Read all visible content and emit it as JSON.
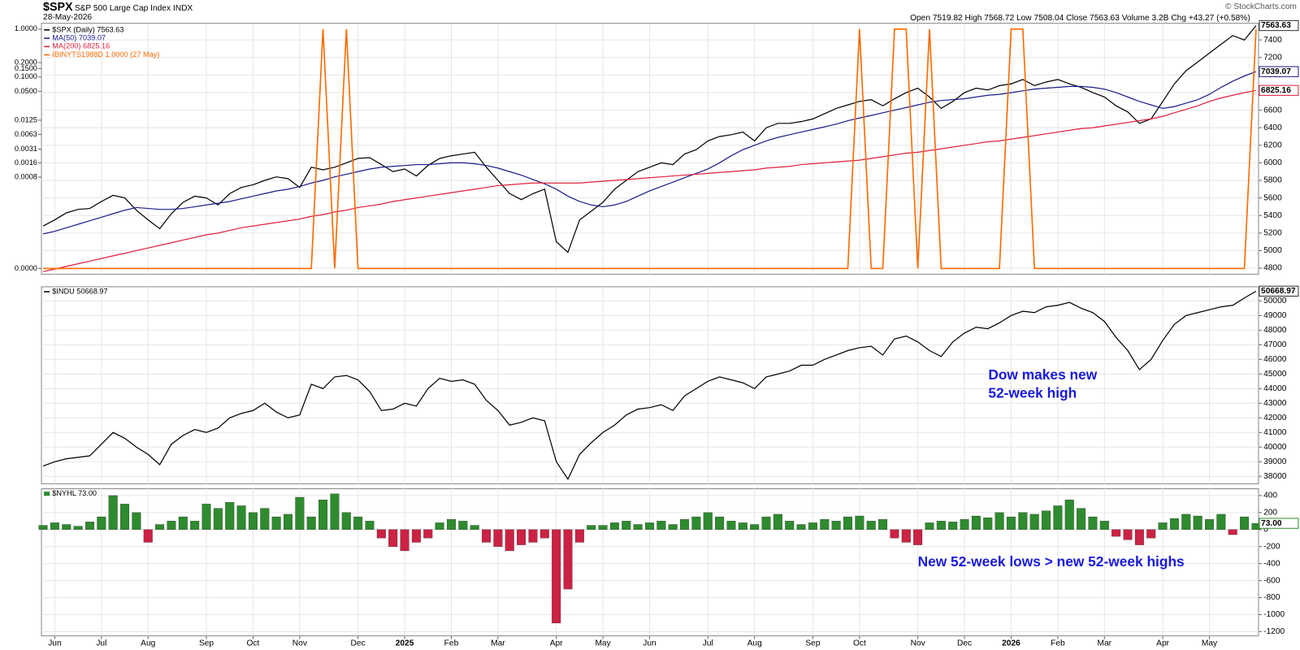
{
  "header": {
    "symbol": "$SPX",
    "name": "S&P 500 Large Cap Index INDX",
    "date": "28-May-2026",
    "quote": "Open 7519.82 High 7568.72 Low 7508.04 Close 7563.63 Volume 3.2B Chg +43.27 (+0.58%)",
    "credit": "© StockCharts.com"
  },
  "chart_data": [
    {
      "type": "line",
      "xlim": [
        0,
        104
      ],
      "ylim": [
        4730,
        7590
      ],
      "yticks": [
        4800,
        5000,
        5200,
        5400,
        5600,
        5800,
        6000,
        6200,
        6400,
        6600,
        6800,
        7000,
        7200,
        7400
      ],
      "y3lim": [
        0,
        1
      ],
      "y3scale": "log",
      "y3ticks": [
        {
          "value": 0,
          "label": "0.0000"
        },
        {
          "value": 0.0008,
          "label": "0.0008"
        },
        {
          "value": 0.0016,
          "label": "0.0016"
        },
        {
          "value": 0.0031,
          "label": "0.0031"
        },
        {
          "value": 0.0063,
          "label": "0.0063"
        },
        {
          "value": 0.0125,
          "label": "0.0125"
        },
        {
          "value": 0.05,
          "label": "0.0500"
        },
        {
          "value": 0.1,
          "label": "0.1000"
        },
        {
          "value": 0.15,
          "label": "0.1500"
        },
        {
          "value": 0.2,
          "label": "0.2000"
        },
        {
          "value": 1,
          "label": "1.0000"
        }
      ],
      "grid": true,
      "series": [
        {
          "name": "$SPX (Daily) 7563.63",
          "color": "#000000",
          "values": [
            5280,
            5350,
            5430,
            5470,
            5480,
            5560,
            5630,
            5600,
            5460,
            5350,
            5250,
            5420,
            5550,
            5620,
            5600,
            5520,
            5650,
            5720,
            5750,
            5800,
            5840,
            5820,
            5720,
            5950,
            5920,
            5950,
            6000,
            6050,
            6060,
            5980,
            5900,
            5930,
            5850,
            5970,
            6050,
            6080,
            6100,
            6120,
            5950,
            5800,
            5650,
            5580,
            5650,
            5700,
            5100,
            4980,
            5350,
            5450,
            5550,
            5700,
            5800,
            5900,
            5950,
            6000,
            5980,
            6100,
            6150,
            6250,
            6300,
            6320,
            6350,
            6250,
            6400,
            6450,
            6450,
            6470,
            6500,
            6560,
            6620,
            6660,
            6700,
            6720,
            6650,
            6730,
            6800,
            6850,
            6750,
            6620,
            6700,
            6800,
            6850,
            6830,
            6880,
            6900,
            6950,
            6880,
            6920,
            6950,
            6900,
            6860,
            6800,
            6750,
            6650,
            6580,
            6450,
            6500,
            6700,
            6900,
            7050,
            7150,
            7250,
            7350,
            7450,
            7400,
            7563.63
          ]
        },
        {
          "name": "MA(50) 7039.07",
          "color": "#1c1c8c",
          "values": [
            5190,
            5220,
            5260,
            5300,
            5340,
            5380,
            5420,
            5460,
            5490,
            5480,
            5470,
            5470,
            5480,
            5500,
            5520,
            5540,
            5560,
            5590,
            5620,
            5650,
            5680,
            5700,
            5730,
            5770,
            5800,
            5840,
            5870,
            5900,
            5930,
            5950,
            5960,
            5970,
            5980,
            5980,
            5990,
            6000,
            6000,
            5990,
            5970,
            5940,
            5900,
            5860,
            5810,
            5760,
            5700,
            5620,
            5560,
            5520,
            5500,
            5520,
            5560,
            5620,
            5680,
            5730,
            5780,
            5830,
            5880,
            5930,
            6000,
            6080,
            6150,
            6200,
            6250,
            6290,
            6320,
            6350,
            6380,
            6410,
            6440,
            6480,
            6510,
            6540,
            6570,
            6600,
            6630,
            6660,
            6690,
            6710,
            6720,
            6730,
            6750,
            6770,
            6780,
            6800,
            6820,
            6840,
            6850,
            6860,
            6870,
            6870,
            6860,
            6840,
            6800,
            6750,
            6700,
            6660,
            6620,
            6640,
            6680,
            6720,
            6780,
            6860,
            6930,
            6990,
            7039.07
          ]
        },
        {
          "name": "MA(200) 6825.16",
          "color": "#e0203a",
          "values": [
            4760,
            4790,
            4820,
            4850,
            4880,
            4910,
            4940,
            4970,
            5000,
            5030,
            5060,
            5090,
            5120,
            5150,
            5180,
            5200,
            5230,
            5260,
            5280,
            5300,
            5320,
            5340,
            5360,
            5390,
            5410,
            5440,
            5460,
            5490,
            5510,
            5530,
            5560,
            5580,
            5600,
            5620,
            5640,
            5660,
            5680,
            5700,
            5720,
            5740,
            5750,
            5760,
            5770,
            5770,
            5770,
            5770,
            5770,
            5780,
            5790,
            5800,
            5810,
            5820,
            5830,
            5840,
            5850,
            5860,
            5870,
            5880,
            5890,
            5900,
            5910,
            5920,
            5940,
            5950,
            5960,
            5980,
            5990,
            6000,
            6010,
            6020,
            6030,
            6050,
            6070,
            6090,
            6110,
            6120,
            6140,
            6160,
            6180,
            6200,
            6220,
            6240,
            6250,
            6270,
            6290,
            6310,
            6330,
            6350,
            6370,
            6390,
            6400,
            6420,
            6440,
            6460,
            6480,
            6500,
            6530,
            6570,
            6610,
            6650,
            6700,
            6740,
            6770,
            6800,
            6825.16
          ]
        },
        {
          "name": "IBINYTS1988D 1.0000 (27 May)",
          "color": "#ff6a00",
          "axis": "y3",
          "values": [
            0,
            0,
            0,
            0,
            0,
            0,
            0,
            0,
            0,
            0,
            0,
            0,
            0,
            0,
            0,
            0,
            0,
            0,
            0,
            0,
            0,
            0,
            0,
            0,
            1,
            0,
            1,
            0,
            0,
            0,
            0,
            0,
            0,
            0,
            0,
            0,
            0,
            0,
            0,
            0,
            0,
            0,
            0,
            0,
            0,
            0,
            0,
            0,
            0,
            0,
            0,
            0,
            0,
            0,
            0,
            0,
            0,
            0,
            0,
            0,
            0,
            0,
            0,
            0,
            0,
            0,
            0,
            0,
            0,
            0,
            1,
            0,
            0,
            1,
            1,
            0,
            1,
            0,
            0,
            0,
            0,
            0,
            0,
            1,
            1,
            0,
            0,
            0,
            0,
            0,
            0,
            0,
            0,
            0,
            0,
            0,
            0,
            0,
            0,
            0,
            0,
            0,
            0,
            0,
            1
          ]
        }
      ]
    },
    {
      "type": "line",
      "xlim": [
        0,
        104
      ],
      "ylim": [
        37490,
        50970
      ],
      "yticks": [
        38000,
        39000,
        40000,
        41000,
        42000,
        43000,
        44000,
        45000,
        46000,
        47000,
        48000,
        49000,
        50000
      ],
      "grid": true,
      "annotations": [
        "Dow makes new",
        "52-week high"
      ],
      "series": [
        {
          "name": "$INDU 50668.97",
          "color": "#000000",
          "values": [
            38700,
            39000,
            39200,
            39300,
            39400,
            40200,
            41000,
            40600,
            40000,
            39500,
            38800,
            40200,
            40800,
            41200,
            41000,
            41300,
            42000,
            42300,
            42500,
            43000,
            42400,
            42000,
            42200,
            44300,
            44000,
            44800,
            44900,
            44600,
            43800,
            42500,
            42600,
            43000,
            42800,
            44000,
            44700,
            44500,
            44600,
            44300,
            43200,
            42500,
            41500,
            41700,
            42000,
            41800,
            39000,
            37800,
            39500,
            40300,
            41000,
            41500,
            42200,
            42600,
            42700,
            42900,
            42500,
            43500,
            44000,
            44500,
            44800,
            44600,
            44400,
            44000,
            44800,
            45000,
            45200,
            45600,
            45600,
            46000,
            46300,
            46600,
            46800,
            46900,
            46300,
            47400,
            47600,
            47200,
            46600,
            46200,
            47200,
            47800,
            48200,
            48100,
            48500,
            49000,
            49300,
            49200,
            49600,
            49700,
            49900,
            49500,
            49200,
            48600,
            47500,
            46600,
            45300,
            46000,
            47300,
            48400,
            49000,
            49200,
            49400,
            49600,
            49700,
            50200,
            50668.97
          ]
        }
      ]
    },
    {
      "type": "bar",
      "xlim": [
        0,
        104
      ],
      "ylim": [
        -1250,
        480
      ],
      "yticks": [
        -1200,
        -1000,
        -800,
        -600,
        -400,
        -200,
        0,
        200,
        400
      ],
      "grid": true,
      "annotations": [
        "New 52-week lows > new 52-week highs"
      ],
      "xticks": [
        {
          "value": 1,
          "label": "Jun"
        },
        {
          "value": 5,
          "label": "Jul"
        },
        {
          "value": 9,
          "label": "Aug"
        },
        {
          "value": 14,
          "label": "Sep"
        },
        {
          "value": 18,
          "label": "Oct"
        },
        {
          "value": 22,
          "label": "Nov"
        },
        {
          "value": 27,
          "label": "Dec"
        },
        {
          "value": 31,
          "label": "2025"
        },
        {
          "value": 35,
          "label": "Feb"
        },
        {
          "value": 39,
          "label": "Mar"
        },
        {
          "value": 44,
          "label": "Apr"
        },
        {
          "value": 48,
          "label": "May"
        },
        {
          "value": 52,
          "label": "Jun"
        },
        {
          "value": 57,
          "label": "Jul"
        },
        {
          "value": 61,
          "label": "Aug"
        },
        {
          "value": 66,
          "label": "Sep"
        },
        {
          "value": 70,
          "label": "Oct"
        },
        {
          "value": 75,
          "label": "Nov"
        },
        {
          "value": 79,
          "label": "Dec"
        },
        {
          "value": 83,
          "label": "2026"
        },
        {
          "value": 87,
          "label": "Feb"
        },
        {
          "value": 91,
          "label": "Mar"
        },
        {
          "value": 96,
          "label": "Apr"
        },
        {
          "value": 100,
          "label": "May"
        }
      ],
      "series": [
        {
          "name": "$NYHL 73.00",
          "color": "#2e8b2e",
          "negative_color": "#cc2244",
          "values": [
            50,
            80,
            60,
            40,
            90,
            150,
            400,
            300,
            200,
            -150,
            60,
            100,
            150,
            100,
            300,
            250,
            320,
            280,
            200,
            250,
            150,
            180,
            380,
            150,
            350,
            420,
            200,
            150,
            100,
            -100,
            -200,
            -250,
            -150,
            -100,
            80,
            120,
            100,
            50,
            -150,
            -200,
            -250,
            -180,
            -150,
            -100,
            -1100,
            -700,
            -150,
            50,
            50,
            80,
            100,
            60,
            80,
            100,
            60,
            120,
            150,
            200,
            150,
            100,
            80,
            60,
            150,
            180,
            100,
            60,
            80,
            120,
            100,
            150,
            160,
            100,
            120,
            -100,
            -150,
            -180,
            80,
            100,
            90,
            120,
            160,
            140,
            200,
            150,
            200,
            180,
            220,
            280,
            350,
            250,
            150,
            100,
            -80,
            -120,
            -180,
            -100,
            80,
            130,
            180,
            160,
            120,
            180,
            -60,
            150,
            73
          ],
          "value_labels": [
            null,
            null,
            null,
            null,
            null,
            null,
            null,
            null,
            null,
            null,
            null,
            null,
            null,
            null,
            null,
            null,
            null,
            null,
            null,
            null,
            null,
            null,
            null,
            null,
            null,
            null,
            null,
            null,
            null,
            null,
            null,
            null,
            null,
            null,
            null,
            null,
            null,
            null,
            null,
            null,
            null,
            null,
            null,
            null,
            null,
            null,
            null,
            null,
            null,
            null,
            null,
            null,
            null,
            null,
            null,
            null,
            null,
            null,
            null,
            null,
            null,
            null,
            null,
            null,
            null,
            null,
            null,
            null,
            null,
            null,
            null,
            null,
            null,
            null,
            null,
            null,
            null,
            null,
            null,
            null,
            null,
            null,
            null,
            null,
            null,
            null,
            null,
            null,
            null,
            null,
            null,
            null,
            null,
            null,
            null,
            null,
            null,
            null,
            null,
            null,
            null,
            null,
            null,
            null,
            "73.00"
          ]
        }
      ]
    }
  ]
}
